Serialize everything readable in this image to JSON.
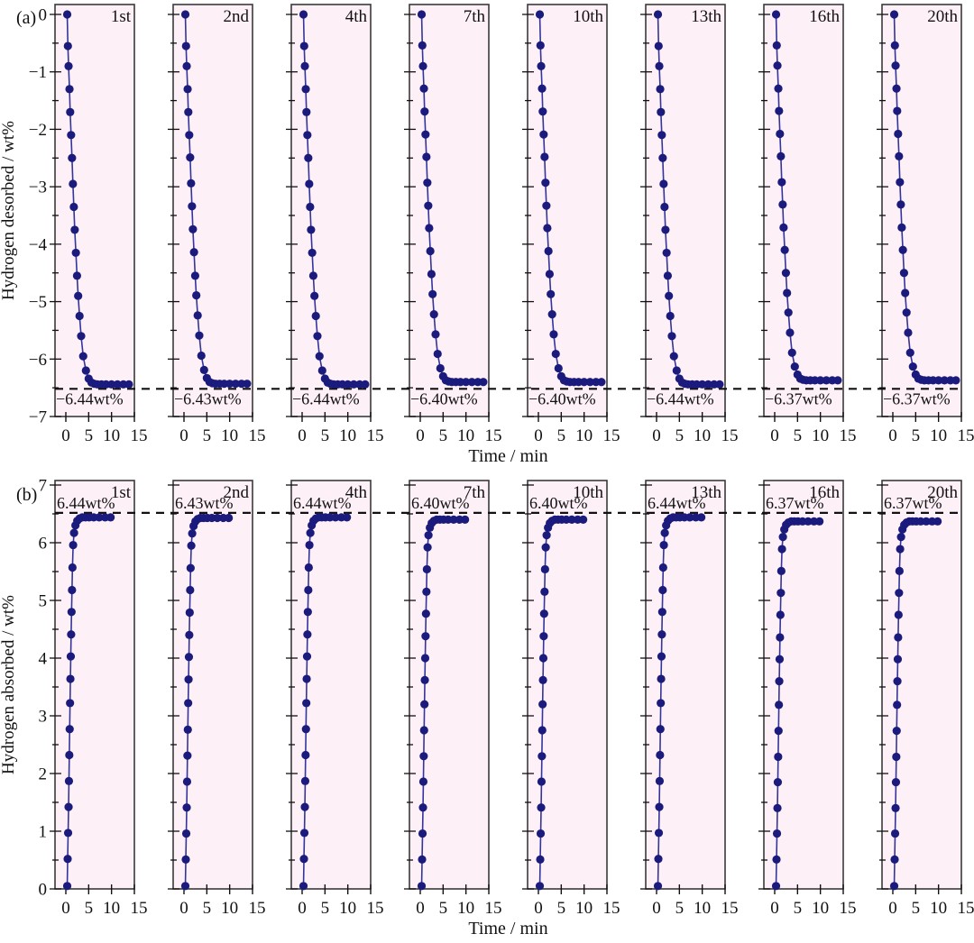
{
  "figure": {
    "panel_bg": "#fdf0f7",
    "panel_border": "#3a3a3a",
    "dot_color": "#1b1b7d",
    "line_color": "#34349a",
    "dash_color": "#111111",
    "text_color": "#111111"
  },
  "chart_data": {
    "type": "scatter",
    "description": "Hydrogen desorption (a) and absorption (b) kinetics over cycling; 8 panels per row for cycles 1st,2nd,4th,7th,10th,13th,16th,20th",
    "rows": [
      {
        "tag": "(a)",
        "ylabel": "Hydrogen desorbed / wt%",
        "xlabel": "Time / min",
        "xlim": [
          0,
          15
        ],
        "ylim": [
          -7,
          0
        ],
        "xticks": [
          0,
          5,
          10,
          15
        ],
        "yticks": [
          {
            "value": 0,
            "label": "0"
          },
          {
            "value": -1,
            "label": "−1"
          },
          {
            "value": -2,
            "label": "−2"
          },
          {
            "value": -3,
            "label": "−3"
          },
          {
            "value": -4,
            "label": "−4"
          },
          {
            "value": -5,
            "label": "−5"
          },
          {
            "value": -6,
            "label": "−6"
          },
          {
            "value": -7,
            "label": "−7"
          }
        ],
        "reference_line_wt_pct": -6.44,
        "time_min": [
          0.3,
          0.45,
          0.6,
          0.8,
          0.95,
          1.15,
          1.35,
          1.55,
          1.75,
          1.95,
          2.2,
          2.45,
          2.7,
          3.0,
          3.35,
          3.8,
          4.4,
          5.0,
          5.6,
          6.2,
          6.9,
          7.8,
          8.8,
          10.0,
          11.3,
          12.6,
          13.8
        ],
        "panels": [
          {
            "label": "1st",
            "annotation": "−6.44wt%",
            "capacity_wt_pct": -6.44,
            "y_wt_pct": [
              0,
              -0.55,
              -0.9,
              -1.3,
              -1.7,
              -2.1,
              -2.5,
              -2.95,
              -3.35,
              -3.75,
              -4.15,
              -4.55,
              -4.9,
              -5.25,
              -5.6,
              -5.95,
              -6.2,
              -6.34,
              -6.41,
              -6.43,
              -6.44,
              -6.44,
              -6.44,
              -6.44,
              -6.44,
              -6.44,
              -6.44
            ]
          },
          {
            "label": "2nd",
            "annotation": "−6.43wt%",
            "capacity_wt_pct": -6.43,
            "y_wt_pct": [
              0,
              -0.55,
              -0.9,
              -1.3,
              -1.7,
              -2.1,
              -2.49,
              -2.94,
              -3.34,
              -3.74,
              -4.14,
              -4.55,
              -4.89,
              -5.24,
              -5.59,
              -5.94,
              -6.19,
              -6.33,
              -6.4,
              -6.42,
              -6.43,
              -6.43,
              -6.43,
              -6.43,
              -6.43,
              -6.43,
              -6.43
            ]
          },
          {
            "label": "4th",
            "annotation": "−6.44wt%",
            "capacity_wt_pct": -6.44,
            "y_wt_pct": [
              0,
              -0.55,
              -0.9,
              -1.3,
              -1.7,
              -2.1,
              -2.5,
              -2.95,
              -3.35,
              -3.75,
              -4.15,
              -4.55,
              -4.9,
              -5.25,
              -5.6,
              -5.95,
              -6.2,
              -6.34,
              -6.41,
              -6.43,
              -6.44,
              -6.44,
              -6.44,
              -6.44,
              -6.44,
              -6.44,
              -6.44
            ]
          },
          {
            "label": "7th",
            "annotation": "−6.40wt%",
            "capacity_wt_pct": -6.4,
            "y_wt_pct": [
              0,
              -0.54,
              -0.9,
              -1.29,
              -1.69,
              -2.09,
              -2.48,
              -2.93,
              -3.33,
              -3.72,
              -4.12,
              -4.52,
              -4.87,
              -5.22,
              -5.57,
              -5.91,
              -6.16,
              -6.3,
              -6.37,
              -6.39,
              -6.4,
              -6.4,
              -6.4,
              -6.4,
              -6.4,
              -6.4,
              -6.4
            ]
          },
          {
            "label": "10th",
            "annotation": "−6.40wt%",
            "capacity_wt_pct": -6.4,
            "y_wt_pct": [
              0,
              -0.54,
              -0.9,
              -1.29,
              -1.69,
              -2.09,
              -2.48,
              -2.93,
              -3.33,
              -3.72,
              -4.12,
              -4.52,
              -4.87,
              -5.22,
              -5.57,
              -5.91,
              -6.16,
              -6.3,
              -6.37,
              -6.39,
              -6.4,
              -6.4,
              -6.4,
              -6.4,
              -6.4,
              -6.4,
              -6.4
            ]
          },
          {
            "label": "13th",
            "annotation": "−6.44wt%",
            "capacity_wt_pct": -6.44,
            "y_wt_pct": [
              0,
              -0.55,
              -0.9,
              -1.3,
              -1.7,
              -2.1,
              -2.5,
              -2.95,
              -3.35,
              -3.75,
              -4.15,
              -4.55,
              -4.9,
              -5.25,
              -5.6,
              -5.95,
              -6.2,
              -6.34,
              -6.41,
              -6.43,
              -6.44,
              -6.44,
              -6.44,
              -6.44,
              -6.44,
              -6.44,
              -6.44
            ]
          },
          {
            "label": "16th",
            "annotation": "−6.37wt%",
            "capacity_wt_pct": -6.37,
            "y_wt_pct": [
              0,
              -0.54,
              -0.89,
              -1.29,
              -1.68,
              -2.08,
              -2.47,
              -2.92,
              -3.31,
              -3.71,
              -4.1,
              -4.5,
              -4.85,
              -5.19,
              -5.54,
              -5.89,
              -6.13,
              -6.27,
              -6.34,
              -6.36,
              -6.37,
              -6.37,
              -6.37,
              -6.37,
              -6.37,
              -6.37,
              -6.37
            ]
          },
          {
            "label": "20th",
            "annotation": "−6.37wt%",
            "capacity_wt_pct": -6.37,
            "y_wt_pct": [
              0,
              -0.54,
              -0.89,
              -1.29,
              -1.68,
              -2.08,
              -2.47,
              -2.92,
              -3.31,
              -3.71,
              -4.1,
              -4.5,
              -4.85,
              -5.19,
              -5.54,
              -5.89,
              -6.13,
              -6.27,
              -6.34,
              -6.36,
              -6.37,
              -6.37,
              -6.37,
              -6.37,
              -6.37,
              -6.37,
              -6.37
            ]
          }
        ]
      },
      {
        "tag": "(b)",
        "ylabel": "Hydrogen absorbed / wt%",
        "xlabel": "Time / min",
        "xlim": [
          0,
          15
        ],
        "ylim": [
          0,
          7
        ],
        "xticks": [
          0,
          5,
          10,
          15
        ],
        "yticks": [
          {
            "value": 7,
            "label": "7"
          },
          {
            "value": 6,
            "label": "6"
          },
          {
            "value": 5,
            "label": "5"
          },
          {
            "value": 4,
            "label": "4"
          },
          {
            "value": 3,
            "label": "3"
          },
          {
            "value": 2,
            "label": "2"
          },
          {
            "value": 1,
            "label": "1"
          },
          {
            "value": 0,
            "label": "0"
          }
        ],
        "reference_line_wt_pct": 6.44,
        "time_min": [
          0.3,
          0.4,
          0.5,
          0.6,
          0.68,
          0.76,
          0.84,
          0.92,
          1.0,
          1.08,
          1.16,
          1.25,
          1.35,
          1.45,
          1.6,
          1.8,
          2.1,
          2.5,
          3.0,
          3.6,
          4.3,
          5.1,
          6.1,
          7.3,
          8.6,
          9.8
        ],
        "panels": [
          {
            "label": "1st",
            "annotation": "6.44wt%",
            "capacity_wt_pct": 6.44,
            "y_wt_pct": [
              0.05,
              0.52,
              0.97,
              1.42,
              1.87,
              2.32,
              2.77,
              3.22,
              3.64,
              4.03,
              4.41,
              4.8,
              5.18,
              5.57,
              5.96,
              6.17,
              6.3,
              6.38,
              6.42,
              6.44,
              6.44,
              6.44,
              6.44,
              6.44,
              6.44,
              6.44
            ]
          },
          {
            "label": "2nd",
            "annotation": "6.43wt%",
            "capacity_wt_pct": 6.43,
            "y_wt_pct": [
              0.05,
              0.51,
              0.96,
              1.41,
              1.86,
              2.31,
              2.76,
              3.22,
              3.63,
              4.02,
              4.4,
              4.79,
              5.18,
              5.56,
              5.95,
              6.16,
              6.29,
              6.37,
              6.41,
              6.43,
              6.43,
              6.43,
              6.43,
              6.43,
              6.43,
              6.43
            ]
          },
          {
            "label": "4th",
            "annotation": "6.44wt%",
            "capacity_wt_pct": 6.44,
            "y_wt_pct": [
              0.05,
              0.52,
              0.97,
              1.42,
              1.87,
              2.32,
              2.77,
              3.22,
              3.64,
              4.03,
              4.41,
              4.8,
              5.18,
              5.57,
              5.96,
              6.17,
              6.3,
              6.38,
              6.42,
              6.44,
              6.44,
              6.44,
              6.44,
              6.44,
              6.44,
              6.44
            ]
          },
          {
            "label": "7th",
            "annotation": "6.40wt%",
            "capacity_wt_pct": 6.4,
            "y_wt_pct": [
              0.05,
              0.51,
              0.96,
              1.41,
              1.86,
              2.3,
              2.75,
              3.2,
              3.62,
              4.0,
              4.38,
              4.77,
              5.15,
              5.54,
              5.92,
              6.13,
              6.26,
              6.34,
              6.38,
              6.4,
              6.4,
              6.4,
              6.4,
              6.4,
              6.4,
              6.4
            ]
          },
          {
            "label": "10th",
            "annotation": "6.40wt%",
            "capacity_wt_pct": 6.4,
            "y_wt_pct": [
              0.05,
              0.51,
              0.96,
              1.41,
              1.86,
              2.3,
              2.75,
              3.2,
              3.62,
              4.0,
              4.38,
              4.77,
              5.15,
              5.54,
              5.92,
              6.13,
              6.26,
              6.34,
              6.38,
              6.4,
              6.4,
              6.4,
              6.4,
              6.4,
              6.4,
              6.4
            ]
          },
          {
            "label": "13th",
            "annotation": "6.44wt%",
            "capacity_wt_pct": 6.44,
            "y_wt_pct": [
              0.05,
              0.52,
              0.97,
              1.42,
              1.87,
              2.32,
              2.77,
              3.22,
              3.64,
              4.03,
              4.41,
              4.8,
              5.18,
              5.57,
              5.96,
              6.17,
              6.3,
              6.38,
              6.42,
              6.44,
              6.44,
              6.44,
              6.44,
              6.44,
              6.44,
              6.44
            ]
          },
          {
            "label": "16th",
            "annotation": "6.37wt%",
            "capacity_wt_pct": 6.37,
            "y_wt_pct": [
              0.05,
              0.51,
              0.96,
              1.4,
              1.85,
              2.29,
              2.74,
              3.19,
              3.6,
              3.98,
              4.36,
              4.75,
              5.13,
              5.51,
              5.89,
              6.1,
              6.23,
              6.31,
              6.35,
              6.37,
              6.37,
              6.37,
              6.37,
              6.37,
              6.37,
              6.37
            ]
          },
          {
            "label": "20th",
            "annotation": "6.37wt%",
            "capacity_wt_pct": 6.37,
            "y_wt_pct": [
              0.05,
              0.51,
              0.96,
              1.4,
              1.85,
              2.29,
              2.74,
              3.19,
              3.6,
              3.98,
              4.36,
              4.75,
              5.13,
              5.51,
              5.89,
              6.1,
              6.23,
              6.31,
              6.35,
              6.37,
              6.37,
              6.37,
              6.37,
              6.37,
              6.37,
              6.37
            ]
          }
        ]
      }
    ]
  }
}
